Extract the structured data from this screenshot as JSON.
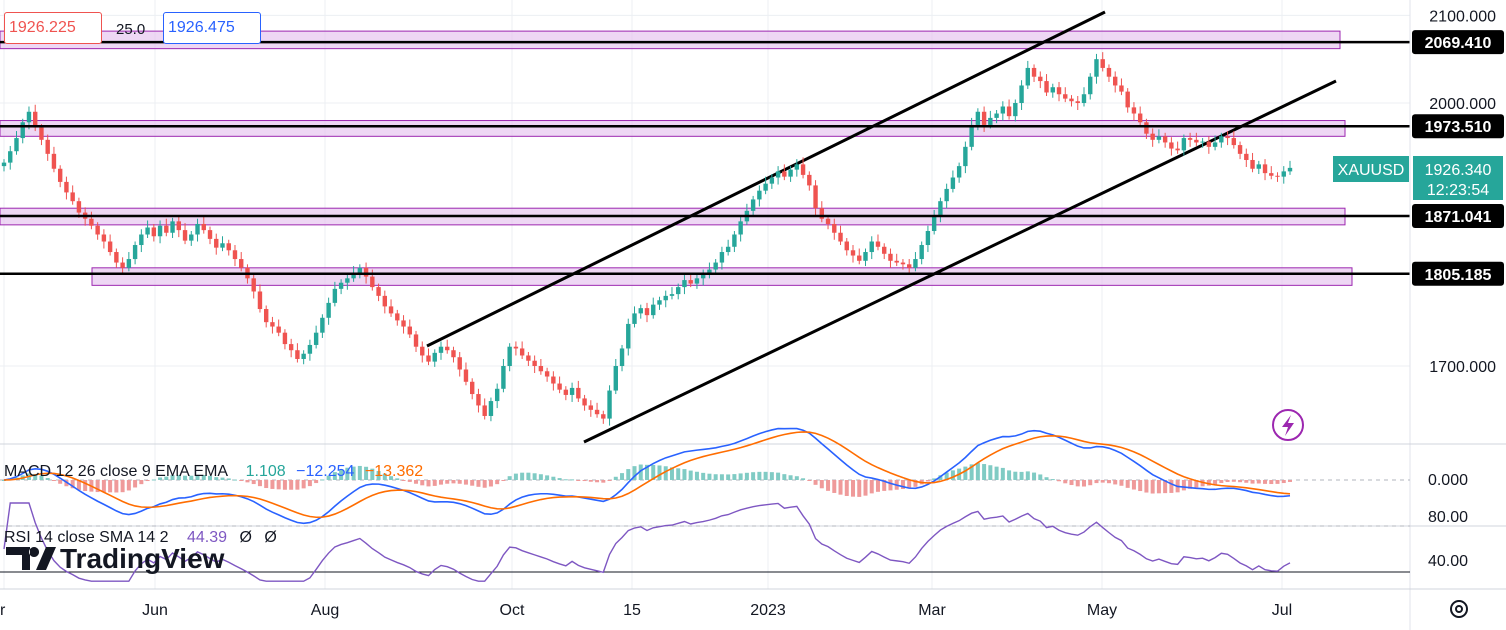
{
  "header": {
    "sell_price": "1926.225",
    "spread": "25.0",
    "buy_price": "1926.475"
  },
  "symbol": {
    "name": "XAUUSD",
    "price": "1926.340",
    "countdown": "12:23:54",
    "color": "#26a69a"
  },
  "logo": {
    "text": "TradingView"
  },
  "settings_icon": "gear-icon",
  "colors": {
    "up": "#26a69a",
    "down": "#ef5350",
    "zone_fill": "#e7c6ef",
    "zone_border": "#9c27b0",
    "macd_line": "#2962ff",
    "signal_line": "#ff6d00",
    "rsi_line": "#7e57c2"
  },
  "chart_data": [
    {
      "type": "candlestick",
      "title": "",
      "y_ticks": [
        1700,
        2000,
        2100
      ],
      "y_tick_labels": [
        "1700.000",
        "2000.000",
        "2100.000"
      ],
      "ylim": [
        1622,
        2112
      ],
      "x_tick_labels": [
        "r",
        "Jun",
        "Aug",
        "Oct",
        "15",
        "2023",
        "Mar",
        "May",
        "Jul"
      ],
      "grid": true,
      "zones": [
        {
          "low": 2062,
          "high": 2082
        },
        {
          "low": 1962,
          "high": 1980
        },
        {
          "low": 1861,
          "high": 1880
        },
        {
          "low": 1792,
          "high": 1812
        }
      ],
      "levels": [
        {
          "value": 2069.41,
          "label": "2069.410"
        },
        {
          "value": 1973.51,
          "label": "1973.510"
        },
        {
          "value": 1871.041,
          "label": "1871.041"
        },
        {
          "value": 1805.185,
          "label": "1805.185"
        }
      ],
      "closes": [
        1932,
        1945,
        1960,
        1978,
        1990,
        1972,
        1958,
        1942,
        1925,
        1910,
        1898,
        1888,
        1875,
        1868,
        1860,
        1850,
        1842,
        1830,
        1818,
        1812,
        1822,
        1838,
        1850,
        1858,
        1848,
        1860,
        1852,
        1865,
        1855,
        1843,
        1850,
        1862,
        1855,
        1845,
        1835,
        1840,
        1832,
        1822,
        1812,
        1800,
        1785,
        1765,
        1750,
        1745,
        1738,
        1725,
        1718,
        1708,
        1714,
        1724,
        1738,
        1755,
        1772,
        1788,
        1795,
        1800,
        1806,
        1812,
        1802,
        1790,
        1780,
        1768,
        1760,
        1752,
        1745,
        1736,
        1722,
        1712,
        1705,
        1715,
        1722,
        1718,
        1710,
        1696,
        1682,
        1668,
        1655,
        1643,
        1660,
        1674,
        1700,
        1722,
        1720,
        1712,
        1706,
        1700,
        1694,
        1688,
        1680,
        1673,
        1667,
        1675,
        1663,
        1655,
        1650,
        1645,
        1640,
        1672,
        1700,
        1720,
        1748,
        1760,
        1766,
        1758,
        1770,
        1775,
        1780,
        1782,
        1790,
        1798,
        1794,
        1800,
        1804,
        1810,
        1818,
        1830,
        1836,
        1850,
        1865,
        1877,
        1890,
        1900,
        1908,
        1915,
        1922,
        1916,
        1924,
        1930,
        1918,
        1906,
        1880,
        1868,
        1862,
        1852,
        1842,
        1832,
        1826,
        1820,
        1830,
        1842,
        1836,
        1828,
        1820,
        1818,
        1816,
        1812,
        1822,
        1838,
        1854,
        1870,
        1888,
        1902,
        1915,
        1928,
        1950,
        1975,
        1990,
        1975,
        1983,
        1988,
        1996,
        1985,
        2000,
        2020,
        2040,
        2030,
        2025,
        2012,
        2018,
        2010,
        2005,
        2002,
        2000,
        2010,
        2030,
        2050,
        2040,
        2030,
        2020,
        2013,
        1995,
        1988,
        1978,
        1965,
        1958,
        1962,
        1955,
        1948,
        1946,
        1960,
        1958,
        1955,
        1956,
        1950,
        1955,
        1962,
        1960,
        1952,
        1942,
        1935,
        1925,
        1930,
        1920,
        1917,
        1916,
        1922,
        1926
      ],
      "macd": {
        "label": "MACD 12 26 close 9 EMA EMA",
        "histogram": "1.108",
        "macd": "−12.254",
        "signal": "−13.362",
        "y_tick_labels": [
          "0.000"
        ],
        "zero_line": 0,
        "ylim": [
          -26,
          30
        ]
      },
      "rsi": {
        "label": "RSI 14 close SMA 14 2",
        "value": "44.39",
        "na1": "Ø",
        "na2": "Ø",
        "y_tick_labels": [
          "80.00",
          "40.00"
        ],
        "upper": 70,
        "lower": 30,
        "ylim": [
          20,
          92
        ]
      }
    }
  ]
}
